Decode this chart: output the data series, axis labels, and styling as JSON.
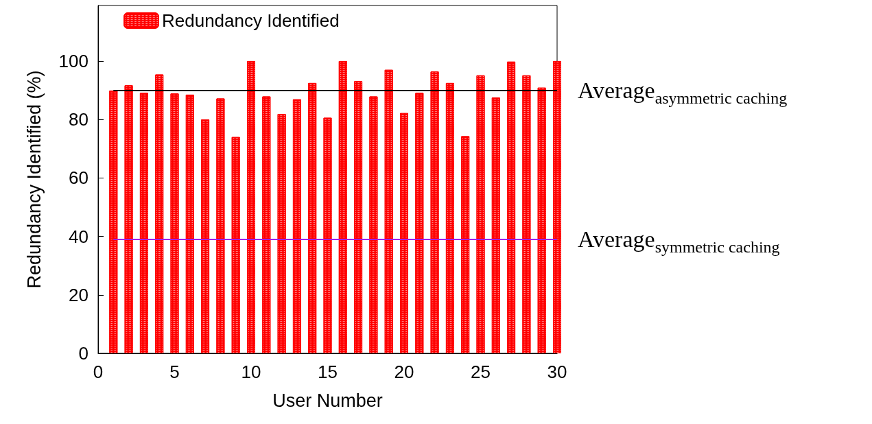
{
  "chart_data": {
    "type": "bar",
    "xlabel": "User Number",
    "ylabel": "Redundancy Identified (%)",
    "x": [
      1,
      2,
      3,
      4,
      5,
      6,
      7,
      8,
      9,
      10,
      11,
      12,
      13,
      14,
      15,
      16,
      17,
      18,
      19,
      20,
      21,
      22,
      23,
      24,
      25,
      26,
      27,
      28,
      29,
      30
    ],
    "series": [
      {
        "name": "Redundancy Identified",
        "color": "#ff0000",
        "values": [
          89.9,
          91.7,
          89.1,
          95.4,
          88.9,
          88.5,
          80,
          87.2,
          74,
          100,
          87.9,
          81.9,
          86.9,
          92.5,
          80.6,
          100,
          93.1,
          87.9,
          97,
          82.2,
          89.1,
          96.4,
          92.5,
          74.3,
          95.1,
          87.5,
          99.8,
          95.1,
          90.9,
          100
        ]
      }
    ],
    "xlim": [
      0,
      30
    ],
    "xticks": [
      0,
      5,
      10,
      15,
      20,
      25,
      30
    ],
    "ylim": [
      0,
      119
    ],
    "yticks": [
      0,
      20,
      40,
      60,
      80,
      100
    ],
    "ref_lines": [
      {
        "axis": "y",
        "value": 89.9,
        "label": "Average$_{asymmetric caching}$",
        "color": "#000000"
      },
      {
        "axis": "y",
        "value": 39,
        "label": "Average$_{symmetric caching}$",
        "color": "#a020f0"
      }
    ],
    "grid": false,
    "legend": "top left"
  }
}
